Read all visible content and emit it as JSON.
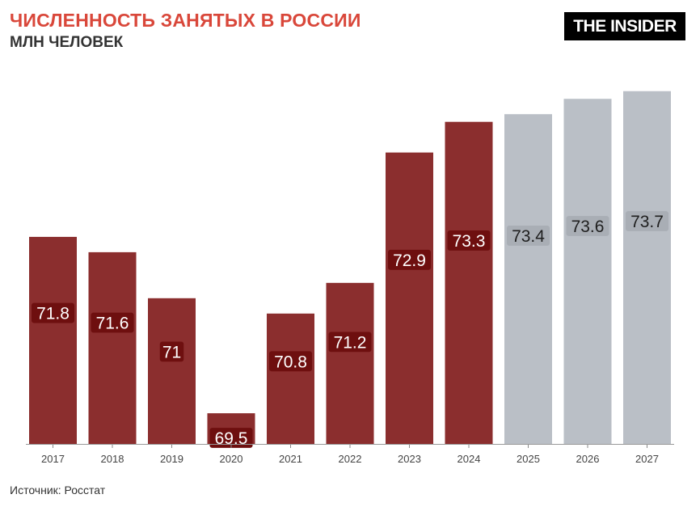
{
  "header": {
    "title": "ЧИСЛЕННОСТЬ ЗАНЯТЫХ В РОССИИ",
    "subtitle": "МЛН ЧЕЛОВЕК"
  },
  "logo": {
    "text": "THE INSIDER"
  },
  "footer": {
    "source": "Источник: Росстат"
  },
  "colors": {
    "actual": "#8b2e2e",
    "forecast": "#babfc6",
    "title": "#d9473a",
    "label_badge_actual": "#6e0f0f"
  },
  "chart_data": {
    "type": "bar",
    "categories": [
      "2017",
      "2018",
      "2019",
      "2020",
      "2021",
      "2022",
      "2023",
      "2024",
      "2025",
      "2026",
      "2027"
    ],
    "values": [
      71.8,
      71.6,
      71,
      69.5,
      70.8,
      71.2,
      72.9,
      73.3,
      73.4,
      73.6,
      73.7
    ],
    "value_labels": [
      "71.8",
      "71.6",
      "71",
      "69.5",
      "70.8",
      "71.2",
      "72.9",
      "73.3",
      "73.4",
      "73.6",
      "73.7"
    ],
    "forecast_from_index": 8,
    "ylim": [
      69.1,
      73.75
    ],
    "grid": false,
    "xlabel": "",
    "ylabel": ""
  }
}
